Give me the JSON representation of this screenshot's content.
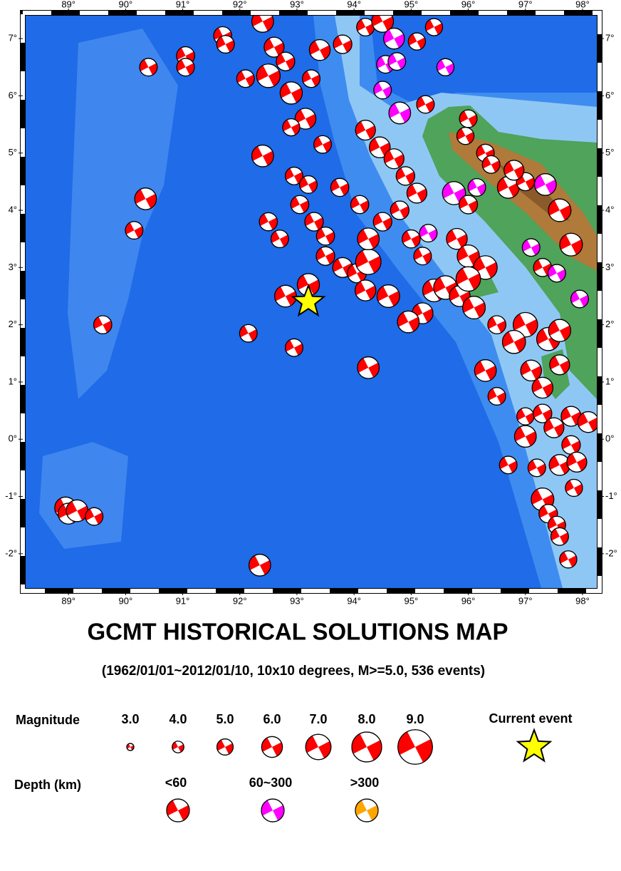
{
  "map": {
    "xlim": [
      88.25,
      98.25
    ],
    "ylim": [
      -2.6,
      7.4
    ],
    "xticks": [
      {
        "value": 89,
        "label": "89°"
      },
      {
        "value": 90,
        "label": "90°"
      },
      {
        "value": 91,
        "label": "91°"
      },
      {
        "value": 92,
        "label": "92°"
      },
      {
        "value": 93,
        "label": "93°"
      },
      {
        "value": 94,
        "label": "94°"
      },
      {
        "value": 95,
        "label": "95°"
      },
      {
        "value": 96,
        "label": "96°"
      },
      {
        "value": 97,
        "label": "97°"
      },
      {
        "value": 98,
        "label": "98°"
      }
    ],
    "yticks": [
      {
        "value": 7,
        "label": "7°"
      },
      {
        "value": 6,
        "label": "6°"
      },
      {
        "value": 5,
        "label": "5°"
      },
      {
        "value": 4,
        "label": "4°"
      },
      {
        "value": 3,
        "label": "3°"
      },
      {
        "value": 2,
        "label": "2°"
      },
      {
        "value": 1,
        "label": "1°"
      },
      {
        "value": 0,
        "label": "0°"
      },
      {
        "value": -1,
        "label": "-1°"
      },
      {
        "value": -2,
        "label": "-2°"
      }
    ],
    "events": [
      {
        "lon": 90.4,
        "lat": 6.5,
        "mag": 5.3,
        "color": "#ff0000"
      },
      {
        "lon": 91.05,
        "lat": 6.7,
        "mag": 5.4,
        "color": "#ff0000"
      },
      {
        "lon": 91.05,
        "lat": 6.5,
        "mag": 5.3,
        "color": "#ff0000"
      },
      {
        "lon": 91.7,
        "lat": 7.05,
        "mag": 5.4,
        "color": "#ff0000"
      },
      {
        "lon": 91.75,
        "lat": 6.9,
        "mag": 5.3,
        "color": "#ff0000"
      },
      {
        "lon": 92.1,
        "lat": 6.3,
        "mag": 5.3,
        "color": "#ff0000"
      },
      {
        "lon": 92.4,
        "lat": 7.3,
        "mag": 6.2,
        "color": "#ff0000"
      },
      {
        "lon": 92.5,
        "lat": 6.35,
        "mag": 6.6,
        "color": "#ff0000"
      },
      {
        "lon": 92.6,
        "lat": 6.85,
        "mag": 5.8,
        "color": "#ff0000"
      },
      {
        "lon": 92.8,
        "lat": 6.6,
        "mag": 5.5,
        "color": "#ff0000"
      },
      {
        "lon": 92.9,
        "lat": 6.05,
        "mag": 6.3,
        "color": "#ff0000"
      },
      {
        "lon": 93.25,
        "lat": 6.3,
        "mag": 5.3,
        "color": "#ff0000"
      },
      {
        "lon": 93.4,
        "lat": 6.8,
        "mag": 6.0,
        "color": "#ff0000"
      },
      {
        "lon": 93.8,
        "lat": 6.9,
        "mag": 5.5,
        "color": "#ff0000"
      },
      {
        "lon": 94.2,
        "lat": 7.2,
        "mag": 5.3,
        "color": "#ff0000"
      },
      {
        "lon": 94.5,
        "lat": 7.3,
        "mag": 6.2,
        "color": "#ff0000"
      },
      {
        "lon": 94.7,
        "lat": 7.0,
        "mag": 6.0,
        "color": "#ff00ff"
      },
      {
        "lon": 95.1,
        "lat": 6.95,
        "mag": 5.2,
        "color": "#ff0000"
      },
      {
        "lon": 95.4,
        "lat": 7.2,
        "mag": 5.2,
        "color": "#ff0000"
      },
      {
        "lon": 94.55,
        "lat": 6.55,
        "mag": 5.3,
        "color": "#ff00ff"
      },
      {
        "lon": 94.75,
        "lat": 6.6,
        "mag": 5.3,
        "color": "#ff00ff"
      },
      {
        "lon": 95.6,
        "lat": 6.5,
        "mag": 5.2,
        "color": "#ff00ff"
      },
      {
        "lon": 94.5,
        "lat": 6.1,
        "mag": 5.3,
        "color": "#ff00ff"
      },
      {
        "lon": 94.8,
        "lat": 5.7,
        "mag": 6.2,
        "color": "#ff00ff"
      },
      {
        "lon": 95.25,
        "lat": 5.85,
        "mag": 5.3,
        "color": "#ff0000"
      },
      {
        "lon": 93.15,
        "lat": 5.6,
        "mag": 6.0,
        "color": "#ff0000"
      },
      {
        "lon": 92.9,
        "lat": 5.45,
        "mag": 5.2,
        "color": "#ff0000"
      },
      {
        "lon": 93.45,
        "lat": 5.15,
        "mag": 5.3,
        "color": "#ff0000"
      },
      {
        "lon": 92.4,
        "lat": 4.95,
        "mag": 6.2,
        "color": "#ff0000"
      },
      {
        "lon": 92.95,
        "lat": 4.6,
        "mag": 5.3,
        "color": "#ff0000"
      },
      {
        "lon": 93.2,
        "lat": 4.45,
        "mag": 5.3,
        "color": "#ff0000"
      },
      {
        "lon": 93.75,
        "lat": 4.4,
        "mag": 5.4,
        "color": "#ff0000"
      },
      {
        "lon": 93.05,
        "lat": 4.1,
        "mag": 5.4,
        "color": "#ff0000"
      },
      {
        "lon": 93.3,
        "lat": 3.8,
        "mag": 5.5,
        "color": "#ff0000"
      },
      {
        "lon": 92.5,
        "lat": 3.8,
        "mag": 5.4,
        "color": "#ff0000"
      },
      {
        "lon": 92.7,
        "lat": 3.5,
        "mag": 5.3,
        "color": "#ff0000"
      },
      {
        "lon": 93.5,
        "lat": 3.55,
        "mag": 5.4,
        "color": "#ff0000"
      },
      {
        "lon": 93.5,
        "lat": 3.2,
        "mag": 5.5,
        "color": "#ff0000"
      },
      {
        "lon": 93.8,
        "lat": 3.0,
        "mag": 5.8,
        "color": "#ff0000"
      },
      {
        "lon": 93.2,
        "lat": 2.7,
        "mag": 6.3,
        "color": "#ff0000"
      },
      {
        "lon": 92.8,
        "lat": 2.5,
        "mag": 6.2,
        "color": "#ff0000"
      },
      {
        "lon": 94.05,
        "lat": 2.9,
        "mag": 5.6,
        "color": "#ff0000"
      },
      {
        "lon": 94.2,
        "lat": 2.6,
        "mag": 6.0,
        "color": "#ff0000"
      },
      {
        "lon": 94.25,
        "lat": 3.1,
        "mag": 7.0,
        "color": "#ff0000"
      },
      {
        "lon": 94.6,
        "lat": 2.5,
        "mag": 6.4,
        "color": "#ff0000"
      },
      {
        "lon": 94.25,
        "lat": 3.5,
        "mag": 6.2,
        "color": "#ff0000"
      },
      {
        "lon": 94.2,
        "lat": 5.4,
        "mag": 5.8,
        "color": "#ff0000"
      },
      {
        "lon": 94.45,
        "lat": 5.1,
        "mag": 6.0,
        "color": "#ff0000"
      },
      {
        "lon": 94.7,
        "lat": 4.9,
        "mag": 5.8,
        "color": "#ff0000"
      },
      {
        "lon": 94.9,
        "lat": 4.6,
        "mag": 5.5,
        "color": "#ff0000"
      },
      {
        "lon": 95.1,
        "lat": 4.3,
        "mag": 5.8,
        "color": "#ff0000"
      },
      {
        "lon": 94.8,
        "lat": 4.0,
        "mag": 5.5,
        "color": "#ff0000"
      },
      {
        "lon": 94.5,
        "lat": 3.8,
        "mag": 5.5,
        "color": "#ff0000"
      },
      {
        "lon": 94.1,
        "lat": 4.1,
        "mag": 5.4,
        "color": "#ff0000"
      },
      {
        "lon": 95.0,
        "lat": 3.5,
        "mag": 5.4,
        "color": "#ff0000"
      },
      {
        "lon": 95.2,
        "lat": 3.2,
        "mag": 5.3,
        "color": "#ff0000"
      },
      {
        "lon": 95.8,
        "lat": 3.5,
        "mag": 6.0,
        "color": "#ff0000"
      },
      {
        "lon": 96.0,
        "lat": 3.2,
        "mag": 6.3,
        "color": "#ff0000"
      },
      {
        "lon": 96.3,
        "lat": 3.0,
        "mag": 6.6,
        "color": "#ff0000"
      },
      {
        "lon": 95.4,
        "lat": 2.6,
        "mag": 6.4,
        "color": "#ff0000"
      },
      {
        "lon": 95.6,
        "lat": 2.65,
        "mag": 6.6,
        "color": "#ff0000"
      },
      {
        "lon": 95.85,
        "lat": 2.5,
        "mag": 6.0,
        "color": "#ff0000"
      },
      {
        "lon": 96.0,
        "lat": 2.8,
        "mag": 6.8,
        "color": "#ff0000"
      },
      {
        "lon": 96.1,
        "lat": 2.3,
        "mag": 6.4,
        "color": "#ff0000"
      },
      {
        "lon": 95.2,
        "lat": 2.2,
        "mag": 6.0,
        "color": "#ff0000"
      },
      {
        "lon": 94.95,
        "lat": 2.05,
        "mag": 6.2,
        "color": "#ff0000"
      },
      {
        "lon": 96.5,
        "lat": 2.0,
        "mag": 5.4,
        "color": "#ff0000"
      },
      {
        "lon": 97.0,
        "lat": 2.0,
        "mag": 6.8,
        "color": "#ff0000"
      },
      {
        "lon": 96.8,
        "lat": 1.7,
        "mag": 6.5,
        "color": "#ff0000"
      },
      {
        "lon": 97.4,
        "lat": 1.75,
        "mag": 6.5,
        "color": "#ff0000"
      },
      {
        "lon": 97.6,
        "lat": 1.9,
        "mag": 6.3,
        "color": "#ff0000"
      },
      {
        "lon": 96.3,
        "lat": 1.2,
        "mag": 6.2,
        "color": "#ff0000"
      },
      {
        "lon": 97.1,
        "lat": 1.2,
        "mag": 6.0,
        "color": "#ff0000"
      },
      {
        "lon": 97.3,
        "lat": 0.9,
        "mag": 6.0,
        "color": "#ff0000"
      },
      {
        "lon": 97.6,
        "lat": 1.3,
        "mag": 5.8,
        "color": "#ff0000"
      },
      {
        "lon": 96.5,
        "lat": 0.75,
        "mag": 5.3,
        "color": "#ff0000"
      },
      {
        "lon": 97.0,
        "lat": 0.4,
        "mag": 5.2,
        "color": "#ff0000"
      },
      {
        "lon": 97.3,
        "lat": 0.45,
        "mag": 5.5,
        "color": "#ff0000"
      },
      {
        "lon": 97.0,
        "lat": 0.05,
        "mag": 6.2,
        "color": "#ff0000"
      },
      {
        "lon": 97.5,
        "lat": 0.2,
        "mag": 5.8,
        "color": "#ff0000"
      },
      {
        "lon": 97.8,
        "lat": 0.4,
        "mag": 5.8,
        "color": "#ff0000"
      },
      {
        "lon": 97.8,
        "lat": -0.1,
        "mag": 5.5,
        "color": "#ff0000"
      },
      {
        "lon": 97.6,
        "lat": -0.45,
        "mag": 6.0,
        "color": "#ff0000"
      },
      {
        "lon": 98.1,
        "lat": 0.3,
        "mag": 6.0,
        "color": "#ff0000"
      },
      {
        "lon": 97.9,
        "lat": -0.4,
        "mag": 5.8,
        "color": "#ff0000"
      },
      {
        "lon": 96.7,
        "lat": -0.45,
        "mag": 5.3,
        "color": "#ff0000"
      },
      {
        "lon": 97.2,
        "lat": -0.5,
        "mag": 5.3,
        "color": "#ff0000"
      },
      {
        "lon": 97.85,
        "lat": -0.85,
        "mag": 5.2,
        "color": "#ff0000"
      },
      {
        "lon": 97.3,
        "lat": -1.05,
        "mag": 6.4,
        "color": "#ff0000"
      },
      {
        "lon": 97.4,
        "lat": -1.3,
        "mag": 5.5,
        "color": "#ff0000"
      },
      {
        "lon": 97.55,
        "lat": -1.5,
        "mag": 5.3,
        "color": "#ff0000"
      },
      {
        "lon": 97.6,
        "lat": -1.7,
        "mag": 5.3,
        "color": "#ff0000"
      },
      {
        "lon": 97.75,
        "lat": -2.1,
        "mag": 5.2,
        "color": "#ff0000"
      },
      {
        "lon": 96.0,
        "lat": 5.6,
        "mag": 5.3,
        "color": "#ff0000"
      },
      {
        "lon": 95.95,
        "lat": 5.3,
        "mag": 5.2,
        "color": "#ff0000"
      },
      {
        "lon": 96.3,
        "lat": 5.0,
        "mag": 5.3,
        "color": "#ff0000"
      },
      {
        "lon": 96.7,
        "lat": 4.4,
        "mag": 6.2,
        "color": "#ff0000"
      },
      {
        "lon": 97.0,
        "lat": 4.5,
        "mag": 5.4,
        "color": "#ff0000"
      },
      {
        "lon": 97.35,
        "lat": 4.45,
        "mag": 6.2,
        "color": "#ff00ff"
      },
      {
        "lon": 97.6,
        "lat": 4.0,
        "mag": 6.4,
        "color": "#ff0000"
      },
      {
        "lon": 97.3,
        "lat": 3.0,
        "mag": 5.4,
        "color": "#ff0000"
      },
      {
        "lon": 97.8,
        "lat": 3.4,
        "mag": 6.4,
        "color": "#ff0000"
      },
      {
        "lon": 97.55,
        "lat": 2.9,
        "mag": 5.3,
        "color": "#ff00ff"
      },
      {
        "lon": 97.95,
        "lat": 2.45,
        "mag": 5.3,
        "color": "#ff00ff"
      },
      {
        "lon": 95.75,
        "lat": 4.3,
        "mag": 6.5,
        "color": "#ff00ff"
      },
      {
        "lon": 96.15,
        "lat": 4.4,
        "mag": 5.3,
        "color": "#ff00ff"
      },
      {
        "lon": 96.0,
        "lat": 4.1,
        "mag": 5.5,
        "color": "#ff0000"
      },
      {
        "lon": 95.3,
        "lat": 3.6,
        "mag": 5.3,
        "color": "#ff00ff"
      },
      {
        "lon": 97.1,
        "lat": 3.35,
        "mag": 5.3,
        "color": "#ff00ff"
      },
      {
        "lon": 92.35,
        "lat": -2.2,
        "mag": 6.2,
        "color": "#ff0000"
      },
      {
        "lon": 92.15,
        "lat": 1.85,
        "mag": 5.3,
        "color": "#ff0000"
      },
      {
        "lon": 92.95,
        "lat": 1.6,
        "mag": 5.3,
        "color": "#ff0000"
      },
      {
        "lon": 94.25,
        "lat": 1.25,
        "mag": 6.2,
        "color": "#ff0000"
      },
      {
        "lon": 89.6,
        "lat": 2.0,
        "mag": 5.4,
        "color": "#ff0000"
      },
      {
        "lon": 90.15,
        "lat": 3.65,
        "mag": 5.3,
        "color": "#ff0000"
      },
      {
        "lon": 90.35,
        "lat": 4.2,
        "mag": 6.2,
        "color": "#ff0000"
      },
      {
        "lon": 88.95,
        "lat": -1.2,
        "mag": 6.2,
        "color": "#ff0000"
      },
      {
        "lon": 89.0,
        "lat": -1.3,
        "mag": 6.0,
        "color": "#ff0000"
      },
      {
        "lon": 89.15,
        "lat": -1.25,
        "mag": 6.2,
        "color": "#ff0000"
      },
      {
        "lon": 89.45,
        "lat": -1.35,
        "mag": 5.3,
        "color": "#ff0000"
      },
      {
        "lon": 96.4,
        "lat": 4.8,
        "mag": 5.3,
        "color": "#ff0000"
      },
      {
        "lon": 96.8,
        "lat": 4.7,
        "mag": 5.8,
        "color": "#ff0000"
      }
    ],
    "current_event": {
      "lon": 93.2,
      "lat": 2.4,
      "color": "#ffff00"
    }
  },
  "title": "GCMT HISTORICAL SOLUTIONS MAP",
  "subtitle": "(1962/01/01~2012/01/10, 10x10 degrees, M>=5.0, 536 events)",
  "legend": {
    "magnitude_label": "Magnitude",
    "magnitudes": [
      {
        "value": 3,
        "label": "3.0"
      },
      {
        "value": 4,
        "label": "4.0"
      },
      {
        "value": 5,
        "label": "5.0"
      },
      {
        "value": 6,
        "label": "6.0"
      },
      {
        "value": 7,
        "label": "7.0"
      },
      {
        "value": 8,
        "label": "8.0"
      },
      {
        "value": 9,
        "label": "9.0"
      }
    ],
    "current_event_label": "Current event",
    "depth_label": "Depth (km)",
    "depths": [
      {
        "label": "<60",
        "color": "#ff0000"
      },
      {
        "label": "60~300",
        "color": "#ff00ff"
      },
      {
        "label": ">300",
        "color": "#ffa500"
      }
    ]
  }
}
